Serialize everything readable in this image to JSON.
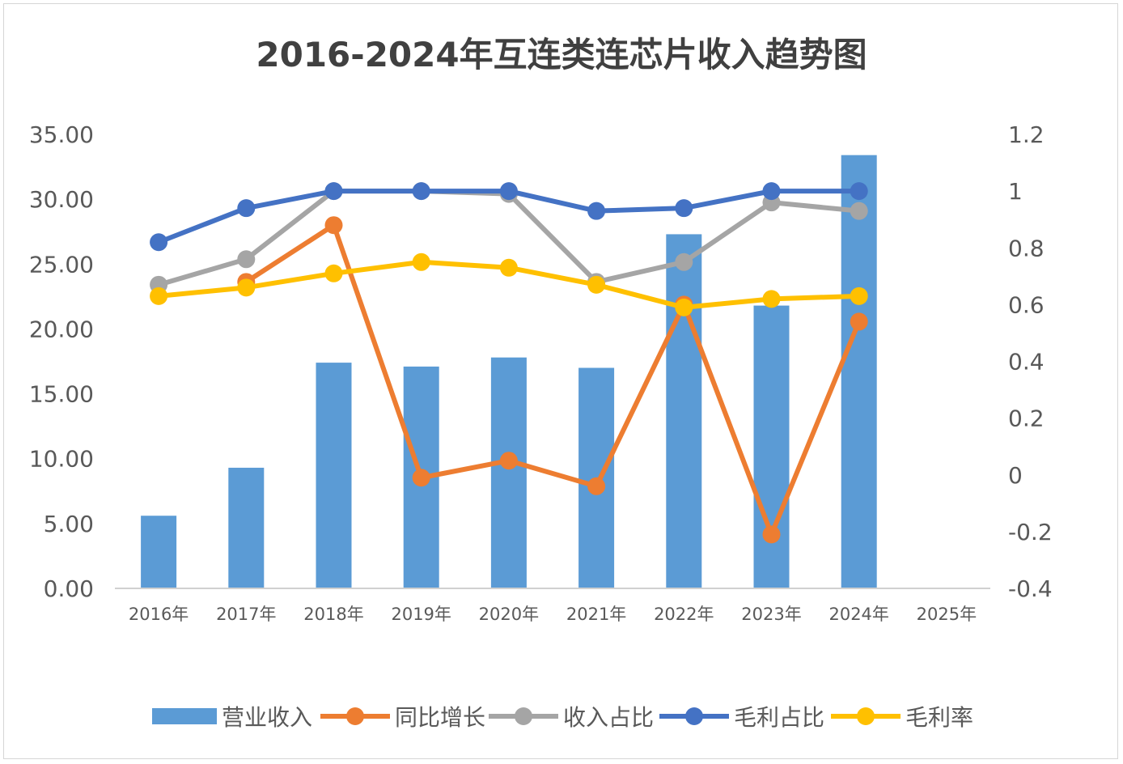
{
  "chart_data": {
    "type": "bar",
    "title": "2016-2024年互连类连芯片收入趋势图",
    "categories": [
      "2016年",
      "2017年",
      "2018年",
      "2019年",
      "2020年",
      "2021年",
      "2022年",
      "2023年",
      "2024年",
      "2025年"
    ],
    "left_axis": {
      "min": 0,
      "max": 35,
      "step": 5,
      "labels": [
        "0.00",
        "5.00",
        "10.00",
        "15.00",
        "20.00",
        "25.00",
        "30.00",
        "35.00"
      ]
    },
    "right_axis": {
      "min": -0.4,
      "max": 1.2,
      "step": 0.2,
      "labels": [
        "-0.4",
        "-0.2",
        "0",
        "0.2",
        "0.4",
        "0.6",
        "0.8",
        "1",
        "1.2"
      ]
    },
    "series": [
      {
        "name": "营业收入",
        "type": "bar",
        "axis": "left",
        "color": "#5b9bd5",
        "values": [
          5.6,
          9.3,
          17.4,
          17.1,
          17.8,
          17.0,
          27.3,
          21.8,
          33.4,
          null
        ]
      },
      {
        "name": "同比增长",
        "type": "line",
        "axis": "right",
        "color": "#ed7d31",
        "values": [
          null,
          0.68,
          0.88,
          -0.01,
          0.05,
          -0.04,
          0.6,
          -0.21,
          0.54,
          null
        ]
      },
      {
        "name": "收入占比",
        "type": "line",
        "axis": "right",
        "color": "#a5a5a5",
        "values": [
          0.67,
          0.76,
          1.0,
          1.0,
          0.99,
          0.68,
          0.75,
          0.96,
          0.93,
          null
        ]
      },
      {
        "name": "毛利占比",
        "type": "line",
        "axis": "right",
        "color": "#4472c4",
        "values": [
          0.82,
          0.94,
          1.0,
          1.0,
          1.0,
          0.93,
          0.94,
          1.0,
          1.0,
          null
        ]
      },
      {
        "name": "毛利率",
        "type": "line",
        "axis": "right",
        "color": "#ffc000",
        "values": [
          0.63,
          0.66,
          0.71,
          0.75,
          0.73,
          0.67,
          0.59,
          0.62,
          0.63,
          null
        ]
      }
    ],
    "legend_position": "bottom"
  }
}
